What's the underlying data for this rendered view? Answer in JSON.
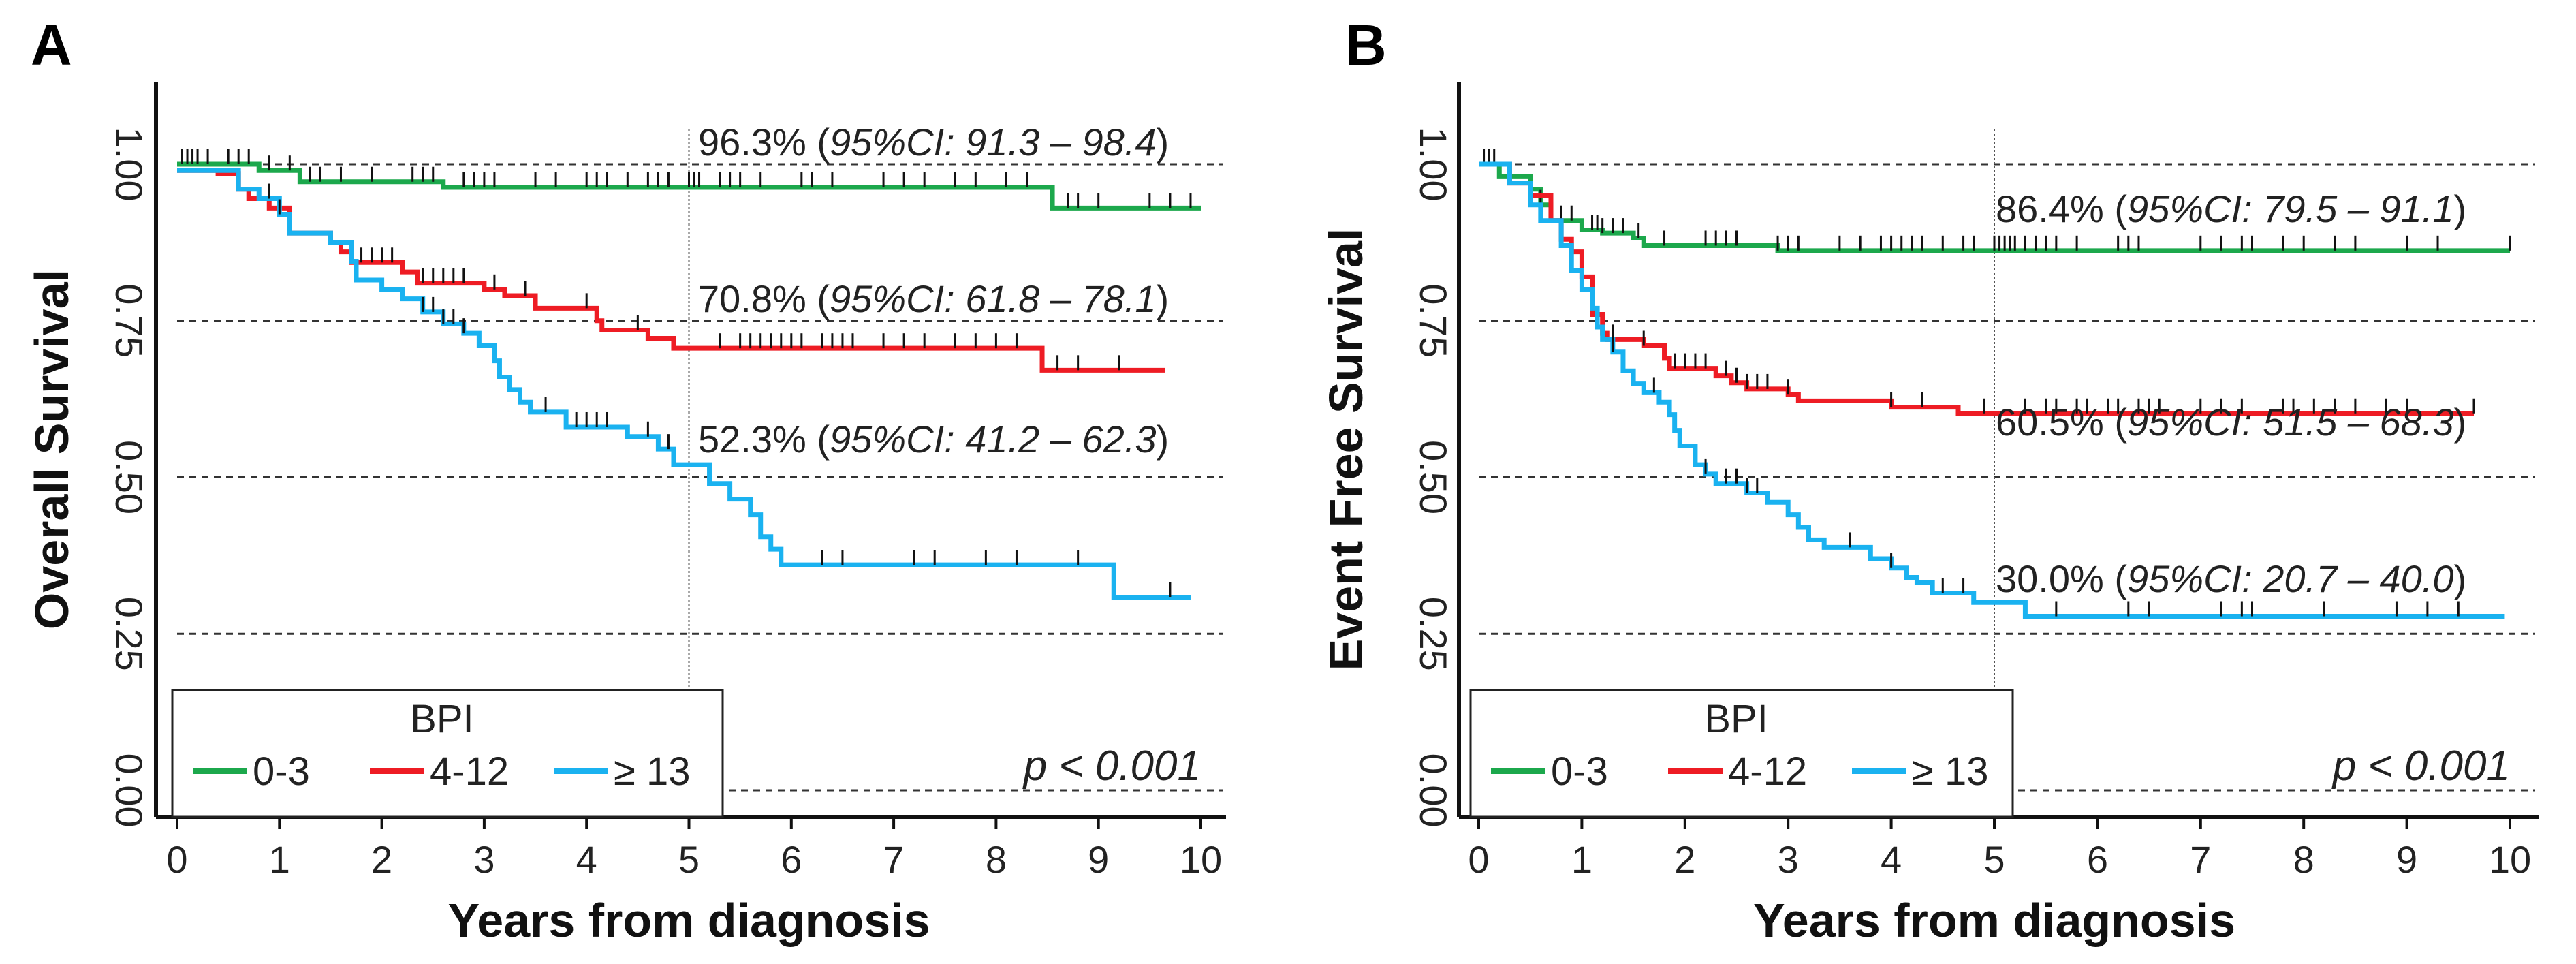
{
  "colors": {
    "g1": "#1ca84c",
    "g2": "#ee1c24",
    "g3": "#1ab2f0"
  },
  "chart_data": [
    {
      "type": "line",
      "panel": "A",
      "ylabel": "Overall Survival",
      "xlabel": "Years from diagnosis",
      "xlim": [
        0,
        10
      ],
      "ylim": [
        0,
        1
      ],
      "xticks": [
        "0",
        "1",
        "2",
        "3",
        "4",
        "5",
        "6",
        "7",
        "8",
        "9",
        "10"
      ],
      "yticks": [
        "0.00",
        "0.25",
        "0.50",
        "0.75",
        "1.00"
      ],
      "grid": "horizontal dashed at y ticks; vertical dotted at x=5",
      "legend": {
        "title": "BPI",
        "placement": "bottom-left",
        "labels": [
          "0-3",
          "4-12",
          "≥ 13"
        ]
      },
      "p_value": "p < 0.001",
      "annotations": [
        {
          "value": "96.3%",
          "ci": "95%CI: 91.3 – 98.4"
        },
        {
          "value": "70.8%",
          "ci": "95%CI: 61.8 – 78.1"
        },
        {
          "value": "52.3%",
          "ci": "95%CI: 41.2 – 62.3"
        }
      ],
      "series": [
        {
          "name": "0-3",
          "end": 10.0,
          "steps": [
            [
              0,
              1.0
            ],
            [
              0.8,
              0.99
            ],
            [
              1.2,
              0.972
            ],
            [
              2.6,
              0.963
            ],
            [
              8.55,
              0.93
            ]
          ],
          "censor": [
            0.05,
            0.1,
            0.15,
            0.2,
            0.3,
            0.5,
            0.6,
            0.7,
            0.9,
            1.1,
            1.3,
            1.4,
            1.6,
            1.9,
            2.3,
            2.4,
            2.5,
            2.8,
            2.9,
            3.0,
            3.1,
            3.5,
            3.7,
            4.0,
            4.1,
            4.2,
            4.4,
            4.6,
            4.7,
            4.8,
            5.0,
            5.05,
            5.1,
            5.3,
            5.4,
            5.5,
            5.7,
            6.1,
            6.2,
            6.4,
            6.9,
            7.1,
            7.3,
            7.6,
            7.8,
            8.1,
            8.3,
            8.7,
            8.8,
            9.0,
            9.5,
            9.7,
            9.9
          ]
        },
        {
          "name": "4-12",
          "end": 9.65,
          "steps": [
            [
              0,
              0.99
            ],
            [
              0.4,
              0.985
            ],
            [
              0.6,
              0.96
            ],
            [
              0.7,
              0.945
            ],
            [
              0.9,
              0.93
            ],
            [
              1.1,
              0.89
            ],
            [
              1.5,
              0.875
            ],
            [
              1.6,
              0.86
            ],
            [
              1.7,
              0.843
            ],
            [
              2.2,
              0.828
            ],
            [
              2.35,
              0.81
            ],
            [
              3.0,
              0.8
            ],
            [
              3.2,
              0.79
            ],
            [
              3.5,
              0.77
            ],
            [
              4.1,
              0.75
            ],
            [
              4.15,
              0.735
            ],
            [
              4.6,
              0.722
            ],
            [
              4.85,
              0.706
            ],
            [
              8.45,
              0.671
            ]
          ],
          "censor": [
            1.7,
            1.8,
            1.9,
            2.0,
            2.1,
            2.4,
            2.5,
            2.6,
            2.7,
            2.8,
            3.1,
            3.4,
            4.0,
            4.5,
            5.3,
            5.5,
            5.6,
            5.7,
            5.8,
            5.9,
            6.0,
            6.1,
            6.3,
            6.4,
            6.5,
            6.6,
            6.9,
            7.1,
            7.3,
            7.6,
            7.8,
            8.0,
            8.2,
            8.6,
            8.8,
            9.2
          ]
        },
        {
          "name": "≥ 13",
          "end": 9.9,
          "steps": [
            [
              0,
              0.99
            ],
            [
              0.6,
              0.96
            ],
            [
              0.8,
              0.945
            ],
            [
              1.0,
              0.92
            ],
            [
              1.1,
              0.89
            ],
            [
              1.5,
              0.875
            ],
            [
              1.7,
              0.845
            ],
            [
              1.75,
              0.815
            ],
            [
              2.0,
              0.8
            ],
            [
              2.2,
              0.785
            ],
            [
              2.4,
              0.764
            ],
            [
              2.6,
              0.745
            ],
            [
              2.8,
              0.73
            ],
            [
              2.95,
              0.71
            ],
            [
              3.1,
              0.686
            ],
            [
              3.15,
              0.66
            ],
            [
              3.25,
              0.64
            ],
            [
              3.35,
              0.62
            ],
            [
              3.45,
              0.604
            ],
            [
              3.8,
              0.58
            ],
            [
              4.4,
              0.565
            ],
            [
              4.7,
              0.545
            ],
            [
              4.85,
              0.52
            ],
            [
              5.2,
              0.49
            ],
            [
              5.4,
              0.465
            ],
            [
              5.6,
              0.44
            ],
            [
              5.7,
              0.405
            ],
            [
              5.8,
              0.385
            ],
            [
              5.9,
              0.36
            ],
            [
              9.15,
              0.308
            ]
          ],
          "censor": [
            0.9,
            1.0,
            2.4,
            2.5,
            2.6,
            2.7,
            2.8,
            3.6,
            3.9,
            4.0,
            4.1,
            4.2,
            4.6,
            4.8,
            6.3,
            6.5,
            7.2,
            7.4,
            7.9,
            8.2,
            8.8,
            9.7
          ]
        }
      ]
    },
    {
      "type": "line",
      "panel": "B",
      "ylabel": "Event Free Survival",
      "xlabel": "Years from diagnosis",
      "xlim": [
        0,
        10
      ],
      "ylim": [
        0,
        1
      ],
      "xticks": [
        "0",
        "1",
        "2",
        "3",
        "4",
        "5",
        "6",
        "7",
        "8",
        "9",
        "10"
      ],
      "yticks": [
        "0.00",
        "0.25",
        "0.50",
        "0.75",
        "1.00"
      ],
      "grid": "horizontal dashed at y ticks; vertical dotted at x=5",
      "legend": {
        "title": "BPI",
        "placement": "bottom-left",
        "labels": [
          "0-3",
          "4-12",
          "≥ 13"
        ]
      },
      "p_value": "p < 0.001",
      "annotations": [
        {
          "value": "86.4%",
          "ci": "95%CI: 79.5 – 91.1"
        },
        {
          "value": "60.5%",
          "ci": "95%CI: 51.5 – 68.3"
        },
        {
          "value": "30.0%",
          "ci": "95%CI: 20.7 – 40.0"
        }
      ],
      "series": [
        {
          "name": "0-3",
          "end": 10.0,
          "steps": [
            [
              0,
              1.0
            ],
            [
              0.2,
              0.98
            ],
            [
              0.5,
              0.96
            ],
            [
              0.6,
              0.935
            ],
            [
              0.7,
              0.91
            ],
            [
              1.0,
              0.895
            ],
            [
              1.2,
              0.89
            ],
            [
              1.5,
              0.882
            ],
            [
              1.6,
              0.87
            ],
            [
              2.9,
              0.862
            ]
          ],
          "censor": [
            0.05,
            0.1,
            0.15,
            0.6,
            0.7,
            0.8,
            0.9,
            1.1,
            1.15,
            1.2,
            1.3,
            1.4,
            1.55,
            1.8,
            2.2,
            2.3,
            2.4,
            2.5,
            2.9,
            3.0,
            3.1,
            3.5,
            3.7,
            3.9,
            4.0,
            4.1,
            4.2,
            4.3,
            4.5,
            4.7,
            4.8,
            5.0,
            5.05,
            5.1,
            5.15,
            5.2,
            5.3,
            5.4,
            5.5,
            5.6,
            5.8,
            6.2,
            6.3,
            6.4,
            7.0,
            7.2,
            7.4,
            7.5,
            7.8,
            8.0,
            8.3,
            8.5,
            9.0,
            9.3,
            10.0
          ]
        },
        {
          "name": "4-12",
          "end": 9.65,
          "steps": [
            [
              0,
              1.0
            ],
            [
              0.3,
              0.97
            ],
            [
              0.5,
              0.95
            ],
            [
              0.7,
              0.91
            ],
            [
              0.8,
              0.88
            ],
            [
              0.9,
              0.86
            ],
            [
              1.0,
              0.82
            ],
            [
              1.1,
              0.76
            ],
            [
              1.2,
              0.73
            ],
            [
              1.25,
              0.72
            ],
            [
              1.6,
              0.71
            ],
            [
              1.8,
              0.69
            ],
            [
              1.85,
              0.674
            ],
            [
              2.3,
              0.662
            ],
            [
              2.45,
              0.651
            ],
            [
              2.6,
              0.641
            ],
            [
              3.0,
              0.632
            ],
            [
              3.1,
              0.622
            ],
            [
              4.0,
              0.612
            ],
            [
              4.65,
              0.602
            ]
          ],
          "censor": [
            1.3,
            1.6,
            1.9,
            2.0,
            2.1,
            2.2,
            2.4,
            2.5,
            2.6,
            2.7,
            2.8,
            3.0,
            4.0,
            4.3,
            4.9,
            5.3,
            5.5,
            5.6,
            5.8,
            5.9,
            6.1,
            6.2,
            6.4,
            6.5,
            6.6,
            7.0,
            7.2,
            7.4,
            7.8,
            7.9,
            8.1,
            8.3,
            8.5,
            8.8,
            9.0,
            9.65
          ]
        },
        {
          "name": "≥ 13",
          "end": 9.95,
          "steps": [
            [
              0,
              1.0
            ],
            [
              0.3,
              0.97
            ],
            [
              0.5,
              0.935
            ],
            [
              0.6,
              0.91
            ],
            [
              0.8,
              0.87
            ],
            [
              0.9,
              0.83
            ],
            [
              1.0,
              0.8
            ],
            [
              1.1,
              0.77
            ],
            [
              1.15,
              0.74
            ],
            [
              1.2,
              0.72
            ],
            [
              1.3,
              0.7
            ],
            [
              1.4,
              0.67
            ],
            [
              1.5,
              0.65
            ],
            [
              1.6,
              0.635
            ],
            [
              1.75,
              0.62
            ],
            [
              1.85,
              0.6
            ],
            [
              1.9,
              0.575
            ],
            [
              1.95,
              0.55
            ],
            [
              2.1,
              0.52
            ],
            [
              2.2,
              0.505
            ],
            [
              2.3,
              0.49
            ],
            [
              2.6,
              0.475
            ],
            [
              2.8,
              0.46
            ],
            [
              3.0,
              0.44
            ],
            [
              3.1,
              0.42
            ],
            [
              3.2,
              0.4
            ],
            [
              3.35,
              0.388
            ],
            [
              3.8,
              0.37
            ],
            [
              4.0,
              0.355
            ],
            [
              4.15,
              0.34
            ],
            [
              4.25,
              0.332
            ],
            [
              4.4,
              0.315
            ],
            [
              4.8,
              0.3
            ],
            [
              5.3,
              0.278
            ]
          ],
          "censor": [
            1.3,
            1.7,
            2.2,
            2.4,
            2.5,
            2.6,
            2.7,
            3.6,
            4.0,
            4.5,
            4.7,
            5.6,
            6.3,
            6.5,
            7.2,
            7.4,
            7.5,
            8.2,
            8.9,
            9.2,
            9.5
          ]
        }
      ]
    }
  ]
}
